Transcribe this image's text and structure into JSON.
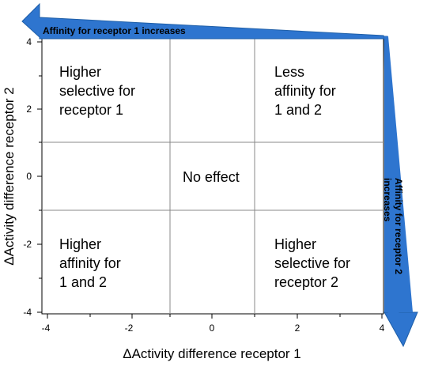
{
  "chart_data": {
    "type": "quadrant-diagram",
    "xlabel": "ΔActivity difference receptor 1",
    "ylabel": "ΔActivity difference receptor 2",
    "xlim": [
      -4,
      4
    ],
    "ylim": [
      -4,
      4
    ],
    "x_ticks": [
      -4,
      -2,
      0,
      2,
      4
    ],
    "y_ticks": [
      4,
      2,
      0,
      -2,
      -4
    ],
    "grid_lines_x": [
      -1,
      1
    ],
    "grid_lines_y": [
      -1,
      1
    ],
    "regions": [
      {
        "id": "top-left",
        "lines": [
          "Higher",
          "selective for",
          "receptor 1"
        ]
      },
      {
        "id": "top-right",
        "lines": [
          "Less",
          "affinity for",
          "1 and 2"
        ]
      },
      {
        "id": "center",
        "lines": [
          "No effect"
        ]
      },
      {
        "id": "bottom-left",
        "lines": [
          "Higher",
          "affinity for",
          "1 and 2"
        ]
      },
      {
        "id": "bottom-right",
        "lines": [
          "Higher",
          "selective for",
          "receptor 2"
        ]
      }
    ],
    "arrows": {
      "top": {
        "label": "Affinity for receptor 1 increases",
        "color": "#2e75cf"
      },
      "right": {
        "label_lines": [
          "Affinity for receptor 2",
          "increases"
        ],
        "color": "#2e75cf"
      }
    }
  }
}
